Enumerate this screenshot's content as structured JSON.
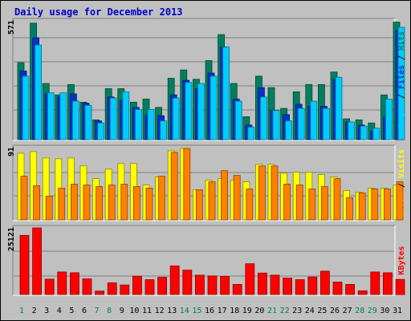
{
  "title": "Daily usage for December 2013",
  "chart_data": [
    {
      "type": "bar",
      "panel": "hits-files-pages",
      "max_label": "571",
      "ymax": 571,
      "right_label_parts": [
        {
          "text": "Pages",
          "color": "#00ccff"
        },
        {
          "text": " / ",
          "color": "#000000"
        },
        {
          "text": "Files",
          "color": "#0033cc"
        },
        {
          "text": " / ",
          "color": "#000000"
        },
        {
          "text": "Hits",
          "color": "#008066"
        }
      ],
      "categories": [
        "1",
        "2",
        "3",
        "4",
        "5",
        "6",
        "7",
        "8",
        "9",
        "10",
        "11",
        "12",
        "13",
        "14",
        "15",
        "16",
        "17",
        "18",
        "19",
        "20",
        "21",
        "22",
        "23",
        "24",
        "25",
        "26",
        "27",
        "28",
        "29",
        "30",
        "31"
      ],
      "series": [
        {
          "name": "Hits",
          "color": "#007f5f",
          "values": [
            370,
            560,
            270,
            215,
            265,
            180,
            95,
            245,
            245,
            180,
            195,
            155,
            295,
            335,
            290,
            380,
            505,
            270,
            110,
            305,
            250,
            150,
            230,
            265,
            265,
            325,
            100,
            95,
            80,
            215,
            565
          ]
        },
        {
          "name": "Files",
          "color": "#0033cc",
          "values": [
            330,
            490,
            220,
            205,
            220,
            175,
            90,
            205,
            190,
            155,
            120,
            115,
            215,
            285,
            245,
            320,
            445,
            195,
            70,
            250,
            140,
            120,
            170,
            160,
            160,
            290,
            85,
            70,
            40,
            110,
            525
          ]
        },
        {
          "name": "Pages",
          "color": "#00ccff",
          "values": [
            305,
            455,
            225,
            225,
            185,
            165,
            80,
            200,
            230,
            145,
            145,
            90,
            200,
            275,
            270,
            305,
            445,
            185,
            60,
            205,
            140,
            90,
            150,
            185,
            150,
            300,
            85,
            65,
            55,
            195,
            540
          ]
        }
      ]
    },
    {
      "type": "bar",
      "panel": "visits-sites",
      "max_label": "91",
      "ymax": 91,
      "right_label_parts": [
        {
          "text": "Sites",
          "color": "#ff8000"
        },
        {
          "text": " / ",
          "color": "#000000"
        },
        {
          "text": "Visits",
          "color": "#ffff00"
        }
      ],
      "categories": [
        "1",
        "2",
        "3",
        "4",
        "5",
        "6",
        "7",
        "8",
        "9",
        "10",
        "11",
        "12",
        "13",
        "14",
        "15",
        "16",
        "17",
        "18",
        "19",
        "20",
        "21",
        "22",
        "23",
        "24",
        "25",
        "26",
        "27",
        "28",
        "29",
        "30",
        "31"
      ],
      "series": [
        {
          "name": "Visits",
          "color": "#ffff00",
          "values": [
            84,
            86,
            78,
            77,
            78,
            68,
            52,
            64,
            71,
            71,
            44,
            54,
            87,
            90,
            38,
            50,
            52,
            50,
            48,
            70,
            70,
            59,
            60,
            60,
            57,
            54,
            37,
            35,
            40,
            40,
            44
          ]
        },
        {
          "name": "Sites",
          "color": "#ff8000",
          "values": [
            55,
            43,
            30,
            40,
            45,
            44,
            42,
            44,
            45,
            42,
            40,
            55,
            85,
            90,
            38,
            48,
            62,
            56,
            39,
            68,
            68,
            45,
            44,
            39,
            42,
            52,
            28,
            34,
            39,
            39,
            48
          ]
        }
      ]
    },
    {
      "type": "bar",
      "panel": "kbytes",
      "max_label": "25121",
      "ymax": 25121,
      "right_label_parts": [
        {
          "text": "KBytes",
          "color": "#ff0000"
        }
      ],
      "categories": [
        "1",
        "2",
        "3",
        "4",
        "5",
        "6",
        "7",
        "8",
        "9",
        "10",
        "11",
        "12",
        "13",
        "14",
        "15",
        "16",
        "17",
        "18",
        "19",
        "20",
        "21",
        "22",
        "23",
        "24",
        "25",
        "26",
        "27",
        "28",
        "29",
        "30",
        "31"
      ],
      "series": [
        {
          "name": "KBytes",
          "color": "#ff0000",
          "values": [
            22300,
            25121,
            5800,
            8500,
            8200,
            5900,
            1300,
            4400,
            3600,
            6900,
            5600,
            6500,
            10800,
            9200,
            7300,
            7000,
            6800,
            3800,
            11600,
            8100,
            7300,
            6200,
            5600,
            6600,
            8800,
            4700,
            3800,
            1400,
            8500,
            8200,
            5700
          ]
        }
      ]
    }
  ],
  "x_axis": {
    "labels": [
      "1",
      "2",
      "3",
      "4",
      "5",
      "6",
      "7",
      "8",
      "9",
      "10",
      "11",
      "12",
      "13",
      "14",
      "15",
      "16",
      "17",
      "18",
      "19",
      "20",
      "21",
      "22",
      "23",
      "24",
      "25",
      "26",
      "27",
      "28",
      "29",
      "30",
      "31"
    ],
    "weekend_days": [
      "1",
      "7",
      "8",
      "14",
      "15",
      "21",
      "22",
      "28",
      "29"
    ],
    "weekday_color": "#000000",
    "weekend_color": "#00805f"
  }
}
